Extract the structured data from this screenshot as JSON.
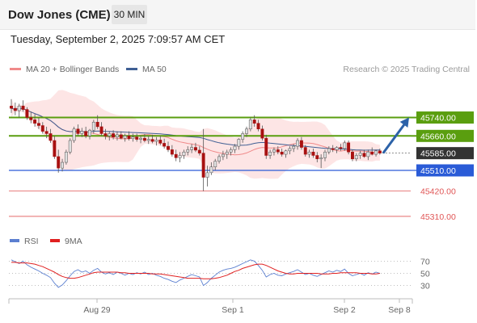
{
  "header": {
    "instrument": "Dow Jones (CME)",
    "timeframe": "30 MIN"
  },
  "timestamp": "Tuesday, September 2, 2025 7:09:57 AM CET",
  "legend": {
    "items": [
      {
        "label": "MA 20 + Bollinger Bands",
        "color": "#f08a8a"
      },
      {
        "label": "MA 50",
        "color": "#3f5f94"
      }
    ],
    "source": "Research © 2025 Trading Central"
  },
  "rsi_legend": {
    "items": [
      {
        "label": "RSI",
        "color": "#5b7fd0"
      },
      {
        "label": "9MA",
        "color": "#e02020"
      }
    ]
  },
  "colors": {
    "resistance": "#5a9e0f",
    "pivot": "#2a5bd7",
    "support": "#e05555",
    "current": "#333333",
    "arrow": "#2c62a8",
    "candle_up": "#e0e0e0",
    "candle_down": "#a81010",
    "bollinger_fill": "#fde0e0",
    "rsi_line": "#5b7fd0",
    "rsi_ma": "#e02020"
  },
  "chart_data": [
    {
      "type": "candlestick",
      "title": "Dow Jones (CME)",
      "timeframe": "30 MIN",
      "x_labels": [
        "Aug 29",
        "Sep 1",
        "Sep 2",
        "Sep 8"
      ],
      "ylim": [
        45250,
        45900
      ],
      "current_price": {
        "value": 45585,
        "label": "45585.00"
      },
      "levels": [
        {
          "value": 45740,
          "label": "45740.00",
          "kind": "resistance"
        },
        {
          "value": 45660,
          "label": "45660.00",
          "kind": "resistance"
        },
        {
          "value": 45510,
          "label": "45510.00",
          "kind": "pivot"
        },
        {
          "value": 45420,
          "label": "45420.00",
          "kind": "support"
        },
        {
          "value": 45310,
          "label": "45310.00",
          "kind": "support"
        }
      ],
      "projection": {
        "from": 45585,
        "to": 45740,
        "direction": "up"
      },
      "series": [
        {
          "name": "MA 20 + Bollinger Bands"
        },
        {
          "name": "MA 50"
        }
      ],
      "candles": [
        [
          45790,
          45820,
          45760,
          45780
        ],
        [
          45780,
          45805,
          45750,
          45770
        ],
        [
          45770,
          45800,
          45740,
          45790
        ],
        [
          45790,
          45815,
          45765,
          45775
        ],
        [
          45775,
          45785,
          45730,
          45740
        ],
        [
          45740,
          45765,
          45715,
          45730
        ],
        [
          45730,
          45755,
          45700,
          45715
        ],
        [
          45715,
          45740,
          45690,
          45705
        ],
        [
          45705,
          45720,
          45670,
          45680
        ],
        [
          45680,
          45700,
          45650,
          45670
        ],
        [
          45670,
          45690,
          45630,
          45640
        ],
        [
          45640,
          45660,
          45560,
          45570
        ],
        [
          45570,
          45600,
          45500,
          45520
        ],
        [
          45520,
          45560,
          45505,
          45545
        ],
        [
          45545,
          45600,
          45535,
          45590
        ],
        [
          45590,
          45650,
          45580,
          45640
        ],
        [
          45640,
          45700,
          45630,
          45690
        ],
        [
          45690,
          45710,
          45660,
          45670
        ],
        [
          45670,
          45695,
          45655,
          45680
        ],
        [
          45680,
          45700,
          45650,
          45660
        ],
        [
          45660,
          45690,
          45645,
          45685
        ],
        [
          45685,
          45730,
          45670,
          45720
        ],
        [
          45720,
          45750,
          45690,
          45700
        ],
        [
          45700,
          45720,
          45660,
          45670
        ],
        [
          45670,
          45690,
          45645,
          45660
        ],
        [
          45660,
          45680,
          45640,
          45670
        ],
        [
          45670,
          45685,
          45645,
          45655
        ],
        [
          45655,
          45680,
          45640,
          45665
        ],
        [
          45665,
          45680,
          45645,
          45650
        ],
        [
          45650,
          45670,
          45635,
          45660
        ],
        [
          45660,
          45680,
          45640,
          45648
        ],
        [
          45648,
          45670,
          45635,
          45655
        ],
        [
          45655,
          45670,
          45635,
          45645
        ],
        [
          45645,
          45660,
          45628,
          45650
        ],
        [
          45650,
          45668,
          45632,
          45640
        ],
        [
          45640,
          45660,
          45625,
          45645
        ],
        [
          45645,
          45665,
          45628,
          45636
        ],
        [
          45636,
          45655,
          45618,
          45642
        ],
        [
          45642,
          45660,
          45620,
          45628
        ],
        [
          45628,
          45648,
          45605,
          45615
        ],
        [
          45615,
          45635,
          45590,
          45600
        ],
        [
          45600,
          45620,
          45570,
          45580
        ],
        [
          45580,
          45600,
          45550,
          45565
        ],
        [
          45565,
          45590,
          45545,
          45575
        ],
        [
          45575,
          45600,
          45560,
          45590
        ],
        [
          45590,
          45615,
          45575,
          45600
        ],
        [
          45600,
          45625,
          45585,
          45610
        ],
        [
          45610,
          45630,
          45590,
          45598
        ],
        [
          45598,
          45615,
          45575,
          45585
        ],
        [
          45585,
          45690,
          45420,
          45480
        ],
        [
          45480,
          45530,
          45440,
          45500
        ],
        [
          45500,
          45545,
          45490,
          45525
        ],
        [
          45525,
          45560,
          45510,
          45550
        ],
        [
          45550,
          45580,
          45540,
          45570
        ],
        [
          45570,
          45595,
          45555,
          45580
        ],
        [
          45580,
          45600,
          45560,
          45590
        ],
        [
          45590,
          45610,
          45575,
          45600
        ],
        [
          45600,
          45625,
          45585,
          45615
        ],
        [
          45615,
          45650,
          45600,
          45645
        ],
        [
          45645,
          45680,
          45630,
          45670
        ],
        [
          45670,
          45700,
          45655,
          45690
        ],
        [
          45690,
          45740,
          45680,
          45730
        ],
        [
          45730,
          45750,
          45700,
          45715
        ],
        [
          45715,
          45730,
          45680,
          45690
        ],
        [
          45690,
          45705,
          45640,
          45650
        ],
        [
          45650,
          45665,
          45560,
          45575
        ],
        [
          45575,
          45600,
          45560,
          45590
        ],
        [
          45590,
          45610,
          45575,
          45600
        ],
        [
          45600,
          45615,
          45580,
          45590
        ],
        [
          45590,
          45605,
          45570,
          45580
        ],
        [
          45580,
          45600,
          45565,
          45595
        ],
        [
          45595,
          45615,
          45580,
          45605
        ],
        [
          45605,
          45625,
          45590,
          45615
        ],
        [
          45615,
          45650,
          45600,
          45640
        ],
        [
          45640,
          45655,
          45600,
          45610
        ],
        [
          45610,
          45620,
          45570,
          45580
        ],
        [
          45580,
          45600,
          45565,
          45590
        ],
        [
          45590,
          45605,
          45565,
          45575
        ],
        [
          45575,
          45590,
          45545,
          45560
        ],
        [
          45560,
          45580,
          45520,
          45565
        ],
        [
          45565,
          45600,
          45550,
          45590
        ],
        [
          45590,
          45615,
          45580,
          45605
        ],
        [
          45605,
          45620,
          45590,
          45600
        ],
        [
          45600,
          45615,
          45585,
          45610
        ],
        [
          45610,
          45625,
          45595,
          45605
        ],
        [
          45605,
          45640,
          45595,
          45630
        ],
        [
          45630,
          45640,
          45580,
          45590
        ],
        [
          45590,
          45600,
          45550,
          45560
        ],
        [
          45560,
          45585,
          45550,
          45575
        ],
        [
          45575,
          45595,
          45560,
          45585
        ],
        [
          45585,
          45600,
          45565,
          45570
        ],
        [
          45570,
          45600,
          45555,
          45590
        ],
        [
          45590,
          45610,
          45575,
          45580
        ],
        [
          45580,
          45600,
          45570,
          45595
        ],
        [
          45595,
          45605,
          45578,
          45585
        ]
      ]
    },
    {
      "type": "line",
      "title": "RSI",
      "yticks": [
        70,
        50,
        30
      ],
      "ylim": [
        15,
        85
      ],
      "series": [
        {
          "name": "RSI",
          "values": [
            72,
            69,
            66,
            70,
            64,
            60,
            57,
            54,
            50,
            47,
            43,
            34,
            27,
            31,
            38,
            46,
            53,
            56,
            52,
            54,
            50,
            55,
            58,
            52,
            49,
            51,
            48,
            52,
            50,
            47,
            50,
            48,
            51,
            49,
            52,
            48,
            50,
            47,
            45,
            42,
            40,
            37,
            35,
            39,
            42,
            45,
            48,
            46,
            44,
            30,
            35,
            42,
            47,
            52,
            55,
            57,
            58,
            60,
            63,
            66,
            69,
            72,
            70,
            63,
            55,
            44,
            48,
            50,
            47,
            46,
            49,
            51,
            53,
            56,
            52,
            48,
            50,
            47,
            45,
            48,
            51,
            54,
            52,
            55,
            53,
            57,
            50,
            46,
            48,
            50,
            47,
            51,
            49,
            52,
            50
          ]
        },
        {
          "name": "9MA",
          "values": [
            68,
            68,
            67,
            67,
            67,
            66,
            65,
            63,
            61,
            58,
            55,
            52,
            48,
            45,
            43,
            42,
            42,
            43,
            45,
            47,
            49,
            51,
            52,
            52,
            52,
            52,
            52,
            52,
            51,
            51,
            50,
            50,
            50,
            50,
            50,
            50,
            49,
            49,
            49,
            48,
            47,
            46,
            45,
            44,
            43,
            42,
            42,
            42,
            42,
            41,
            41,
            41,
            42,
            43,
            45,
            47,
            50,
            53,
            55,
            58,
            60,
            62,
            64,
            65,
            65,
            63,
            60,
            57,
            54,
            52,
            50,
            49,
            49,
            50,
            50,
            50,
            50,
            50,
            50,
            49,
            49,
            49,
            50,
            50,
            51,
            51,
            51,
            51,
            51,
            50,
            50,
            50,
            49,
            49,
            50
          ]
        }
      ]
    }
  ]
}
